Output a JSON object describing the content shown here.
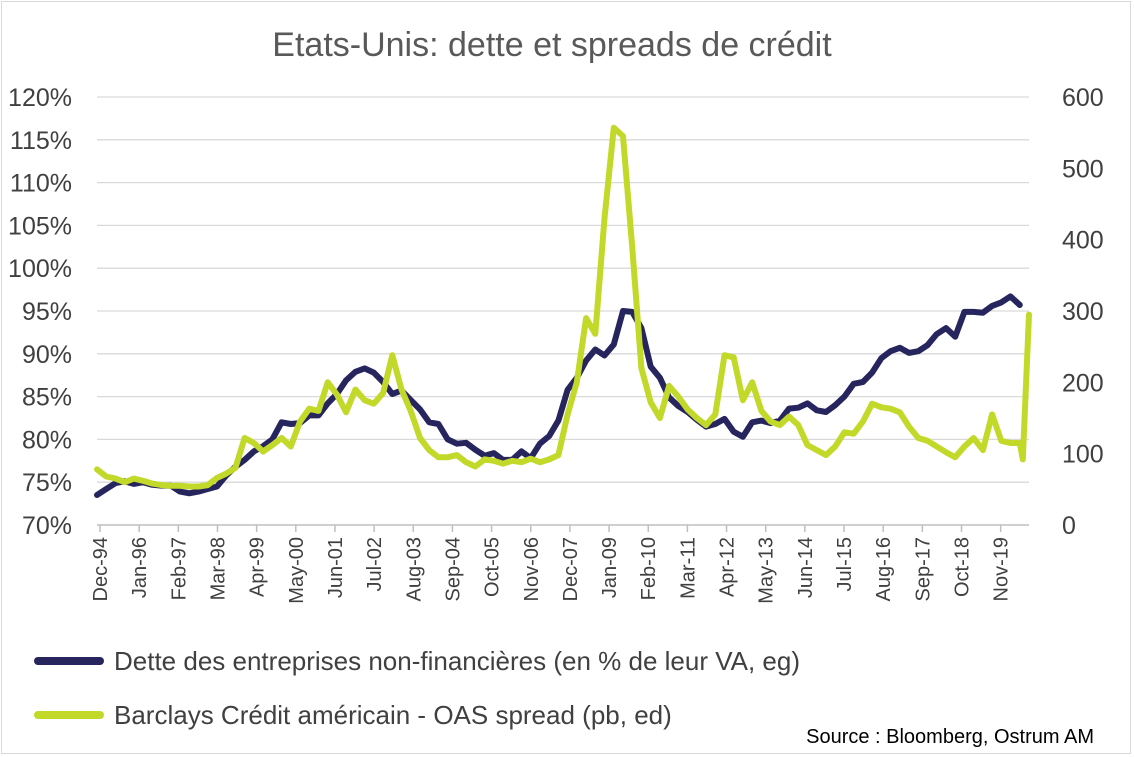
{
  "chart_data": {
    "type": "line",
    "title": "Etats-Unis: dette et spreads de crédit",
    "source": "Source : Bloomberg, Ostrum AM",
    "x_tick_labels": [
      "Dec-94",
      "Jan-96",
      "Feb-97",
      "Mar-98",
      "Apr-99",
      "May-00",
      "Jun-01",
      "Jul-02",
      "Aug-03",
      "Sep-04",
      "Oct-05",
      "Nov-06",
      "Dec-07",
      "Jan-09",
      "Feb-10",
      "Mar-11",
      "Apr-12",
      "May-13",
      "Jun-14",
      "Jul-15",
      "Aug-16",
      "Sep-17",
      "Oct-18",
      "Nov-19"
    ],
    "x_range": [
      "1994-12",
      "2020-03"
    ],
    "y_left": {
      "min": 70,
      "max": 120,
      "step": 5,
      "unit": "%",
      "tick_labels": [
        "70%",
        "75%",
        "80%",
        "85%",
        "90%",
        "95%",
        "100%",
        "105%",
        "110%",
        "115%",
        "120%"
      ]
    },
    "y_right": {
      "min": 0,
      "max": 600,
      "step": 100,
      "tick_labels": [
        "0",
        "100",
        "200",
        "300",
        "400",
        "500",
        "600"
      ]
    },
    "grid": "horizontal",
    "legend_position": "bottom-left",
    "series": [
      {
        "name": "Dette des entreprises non-financières (en % de leur VA, eg)",
        "axis": "left",
        "color": "#27255e",
        "points": [
          [
            "1994-12",
            73.5
          ],
          [
            "1995-03",
            74.2
          ],
          [
            "1995-06",
            74.9
          ],
          [
            "1995-09",
            75.1
          ],
          [
            "1995-12",
            74.8
          ],
          [
            "1996-03",
            75.0
          ],
          [
            "1996-06",
            74.7
          ],
          [
            "1996-09",
            74.6
          ],
          [
            "1996-12",
            74.6
          ],
          [
            "1997-03",
            73.9
          ],
          [
            "1997-06",
            73.7
          ],
          [
            "1997-09",
            73.9
          ],
          [
            "1997-12",
            74.2
          ],
          [
            "1998-03",
            74.5
          ],
          [
            "1998-06",
            75.8
          ],
          [
            "1998-09",
            76.8
          ],
          [
            "1998-12",
            77.6
          ],
          [
            "1999-03",
            78.6
          ],
          [
            "1999-06",
            79.2
          ],
          [
            "1999-09",
            80.0
          ],
          [
            "1999-12",
            82.0
          ],
          [
            "2000-03",
            81.8
          ],
          [
            "2000-06",
            81.9
          ],
          [
            "2000-09",
            82.8
          ],
          [
            "2000-12",
            82.8
          ],
          [
            "2001-03",
            84.2
          ],
          [
            "2001-06",
            85.3
          ],
          [
            "2001-09",
            86.9
          ],
          [
            "2001-12",
            87.9
          ],
          [
            "2002-03",
            88.3
          ],
          [
            "2002-06",
            87.8
          ],
          [
            "2002-09",
            86.7
          ],
          [
            "2002-12",
            85.3
          ],
          [
            "2003-03",
            85.7
          ],
          [
            "2003-06",
            84.6
          ],
          [
            "2003-09",
            83.5
          ],
          [
            "2003-12",
            82.0
          ],
          [
            "2004-03",
            81.8
          ],
          [
            "2004-06",
            80.0
          ],
          [
            "2004-09",
            79.5
          ],
          [
            "2004-12",
            79.6
          ],
          [
            "2005-03",
            78.8
          ],
          [
            "2005-06",
            78.1
          ],
          [
            "2005-09",
            78.4
          ],
          [
            "2005-12",
            77.6
          ],
          [
            "2006-03",
            77.6
          ],
          [
            "2006-06",
            78.6
          ],
          [
            "2006-09",
            77.8
          ],
          [
            "2006-12",
            79.5
          ],
          [
            "2007-03",
            80.4
          ],
          [
            "2007-06",
            82.2
          ],
          [
            "2007-09",
            85.8
          ],
          [
            "2007-12",
            87.2
          ],
          [
            "2008-03",
            89.2
          ],
          [
            "2008-06",
            90.5
          ],
          [
            "2008-09",
            89.8
          ],
          [
            "2008-12",
            91.1
          ],
          [
            "2009-03",
            95.0
          ],
          [
            "2009-06",
            94.9
          ],
          [
            "2009-09",
            93.0
          ],
          [
            "2009-12",
            88.5
          ],
          [
            "2010-03",
            87.2
          ],
          [
            "2010-06",
            84.9
          ],
          [
            "2010-09",
            83.9
          ],
          [
            "2010-12",
            83.2
          ],
          [
            "2011-03",
            82.3
          ],
          [
            "2011-06",
            81.5
          ],
          [
            "2011-09",
            81.8
          ],
          [
            "2011-12",
            82.4
          ],
          [
            "2012-03",
            80.9
          ],
          [
            "2012-06",
            80.3
          ],
          [
            "2012-09",
            82.0
          ],
          [
            "2012-12",
            82.2
          ],
          [
            "2013-03",
            81.9
          ],
          [
            "2013-06",
            82.2
          ],
          [
            "2013-09",
            83.6
          ],
          [
            "2013-12",
            83.7
          ],
          [
            "2014-03",
            84.2
          ],
          [
            "2014-06",
            83.4
          ],
          [
            "2014-09",
            83.2
          ],
          [
            "2014-12",
            84.0
          ],
          [
            "2015-03",
            85.0
          ],
          [
            "2015-06",
            86.5
          ],
          [
            "2015-09",
            86.7
          ],
          [
            "2015-12",
            87.8
          ],
          [
            "2016-03",
            89.5
          ],
          [
            "2016-06",
            90.3
          ],
          [
            "2016-09",
            90.7
          ],
          [
            "2016-12",
            90.1
          ],
          [
            "2017-03",
            90.3
          ],
          [
            "2017-06",
            91.0
          ],
          [
            "2017-09",
            92.3
          ],
          [
            "2017-12",
            93.0
          ],
          [
            "2018-03",
            92.0
          ],
          [
            "2018-06",
            94.9
          ],
          [
            "2018-09",
            94.9
          ],
          [
            "2018-12",
            94.8
          ],
          [
            "2019-03",
            95.6
          ],
          [
            "2019-06",
            96.0
          ],
          [
            "2019-09",
            96.7
          ],
          [
            "2019-12",
            95.7
          ]
        ]
      },
      {
        "name": "Barclays Crédit américain - OAS spread (pb, ed)",
        "axis": "right",
        "color": "#c2d92a",
        "points": [
          [
            "1994-12",
            78
          ],
          [
            "1995-03",
            68
          ],
          [
            "1995-06",
            65
          ],
          [
            "1995-09",
            60
          ],
          [
            "1995-12",
            65
          ],
          [
            "1996-03",
            62
          ],
          [
            "1996-06",
            58
          ],
          [
            "1996-09",
            56
          ],
          [
            "1996-12",
            55
          ],
          [
            "1997-03",
            55
          ],
          [
            "1997-06",
            54
          ],
          [
            "1997-09",
            54
          ],
          [
            "1997-12",
            56
          ],
          [
            "1998-03",
            66
          ],
          [
            "1998-06",
            72
          ],
          [
            "1998-09",
            80
          ],
          [
            "1998-12",
            122
          ],
          [
            "1999-03",
            115
          ],
          [
            "1999-06",
            103
          ],
          [
            "1999-09",
            112
          ],
          [
            "1999-12",
            122
          ],
          [
            "2000-03",
            110
          ],
          [
            "2000-06",
            145
          ],
          [
            "2000-09",
            163
          ],
          [
            "2000-12",
            160
          ],
          [
            "2001-03",
            200
          ],
          [
            "2001-06",
            183
          ],
          [
            "2001-09",
            158
          ],
          [
            "2001-12",
            190
          ],
          [
            "2002-03",
            175
          ],
          [
            "2002-06",
            170
          ],
          [
            "2002-09",
            185
          ],
          [
            "2002-12",
            238
          ],
          [
            "2003-03",
            190
          ],
          [
            "2003-06",
            160
          ],
          [
            "2003-09",
            122
          ],
          [
            "2003-12",
            105
          ],
          [
            "2004-03",
            95
          ],
          [
            "2004-06",
            95
          ],
          [
            "2004-09",
            98
          ],
          [
            "2004-12",
            88
          ],
          [
            "2005-03",
            82
          ],
          [
            "2005-06",
            92
          ],
          [
            "2005-09",
            90
          ],
          [
            "2005-12",
            86
          ],
          [
            "2006-03",
            90
          ],
          [
            "2006-06",
            88
          ],
          [
            "2006-09",
            93
          ],
          [
            "2006-12",
            88
          ],
          [
            "2007-03",
            92
          ],
          [
            "2007-06",
            98
          ],
          [
            "2007-09",
            155
          ],
          [
            "2007-12",
            200
          ],
          [
            "2008-03",
            290
          ],
          [
            "2008-06",
            268
          ],
          [
            "2008-09",
            430
          ],
          [
            "2008-12",
            557
          ],
          [
            "2009-03",
            545
          ],
          [
            "2009-06",
            390
          ],
          [
            "2009-09",
            220
          ],
          [
            "2009-12",
            172
          ],
          [
            "2010-03",
            150
          ],
          [
            "2010-06",
            195
          ],
          [
            "2010-09",
            180
          ],
          [
            "2010-12",
            162
          ],
          [
            "2011-03",
            150
          ],
          [
            "2011-06",
            140
          ],
          [
            "2011-09",
            155
          ],
          [
            "2011-12",
            238
          ],
          [
            "2012-03",
            235
          ],
          [
            "2012-06",
            175
          ],
          [
            "2012-09",
            200
          ],
          [
            "2012-12",
            160
          ],
          [
            "2013-03",
            145
          ],
          [
            "2013-06",
            140
          ],
          [
            "2013-09",
            152
          ],
          [
            "2013-12",
            140
          ],
          [
            "2014-03",
            112
          ],
          [
            "2014-06",
            105
          ],
          [
            "2014-09",
            98
          ],
          [
            "2014-12",
            110
          ],
          [
            "2015-03",
            130
          ],
          [
            "2015-06",
            128
          ],
          [
            "2015-09",
            145
          ],
          [
            "2015-12",
            170
          ],
          [
            "2016-03",
            165
          ],
          [
            "2016-06",
            163
          ],
          [
            "2016-09",
            158
          ],
          [
            "2016-12",
            138
          ],
          [
            "2017-03",
            122
          ],
          [
            "2017-06",
            118
          ],
          [
            "2017-09",
            110
          ],
          [
            "2017-12",
            102
          ],
          [
            "2018-03",
            95
          ],
          [
            "2018-06",
            110
          ],
          [
            "2018-09",
            122
          ],
          [
            "2018-12",
            105
          ],
          [
            "2019-03",
            155
          ],
          [
            "2019-06",
            118
          ],
          [
            "2019-09",
            115
          ],
          [
            "2019-12",
            115
          ],
          [
            "2020-01",
            92
          ],
          [
            "2020-03",
            295
          ]
        ]
      }
    ]
  }
}
